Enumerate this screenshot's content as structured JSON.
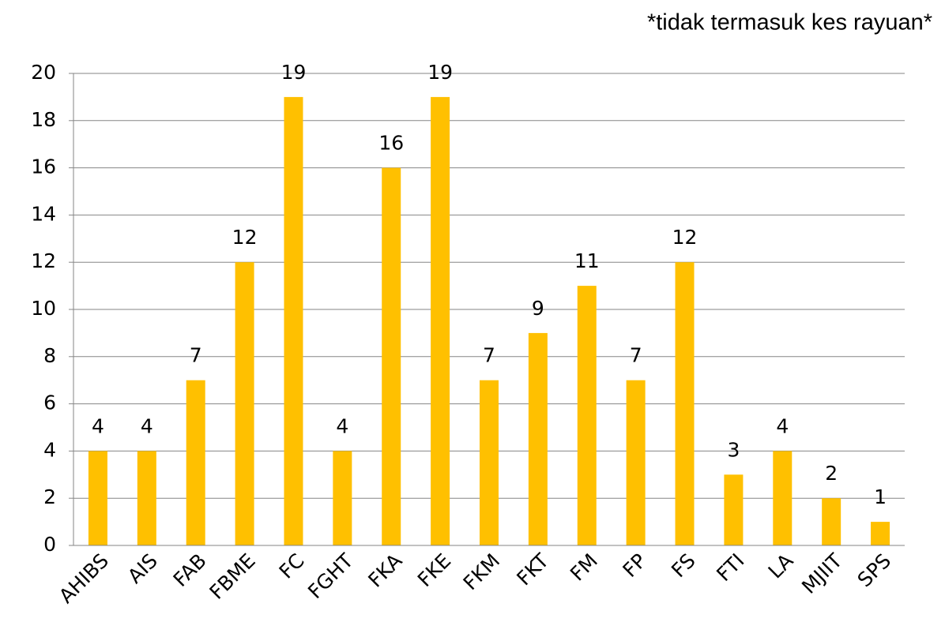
{
  "chart_data": {
    "type": "bar",
    "annotation": "*tidak termasuk kes rayuan*",
    "categories": [
      "AHIBS",
      "AIS",
      "FAB",
      "FBME",
      "FC",
      "FGHT",
      "FKA",
      "FKE",
      "FKM",
      "FKT",
      "FM",
      "FP",
      "FS",
      "FTI",
      "LA",
      "MJIIT",
      "SPS"
    ],
    "values": [
      4,
      4,
      7,
      12,
      19,
      4,
      16,
      19,
      7,
      9,
      11,
      7,
      12,
      3,
      4,
      2,
      1
    ],
    "color": "#ffc000",
    "ylim": [
      0,
      20
    ],
    "yticks": [
      0,
      2,
      4,
      6,
      8,
      10,
      12,
      14,
      16,
      18,
      20
    ],
    "grid": true
  }
}
